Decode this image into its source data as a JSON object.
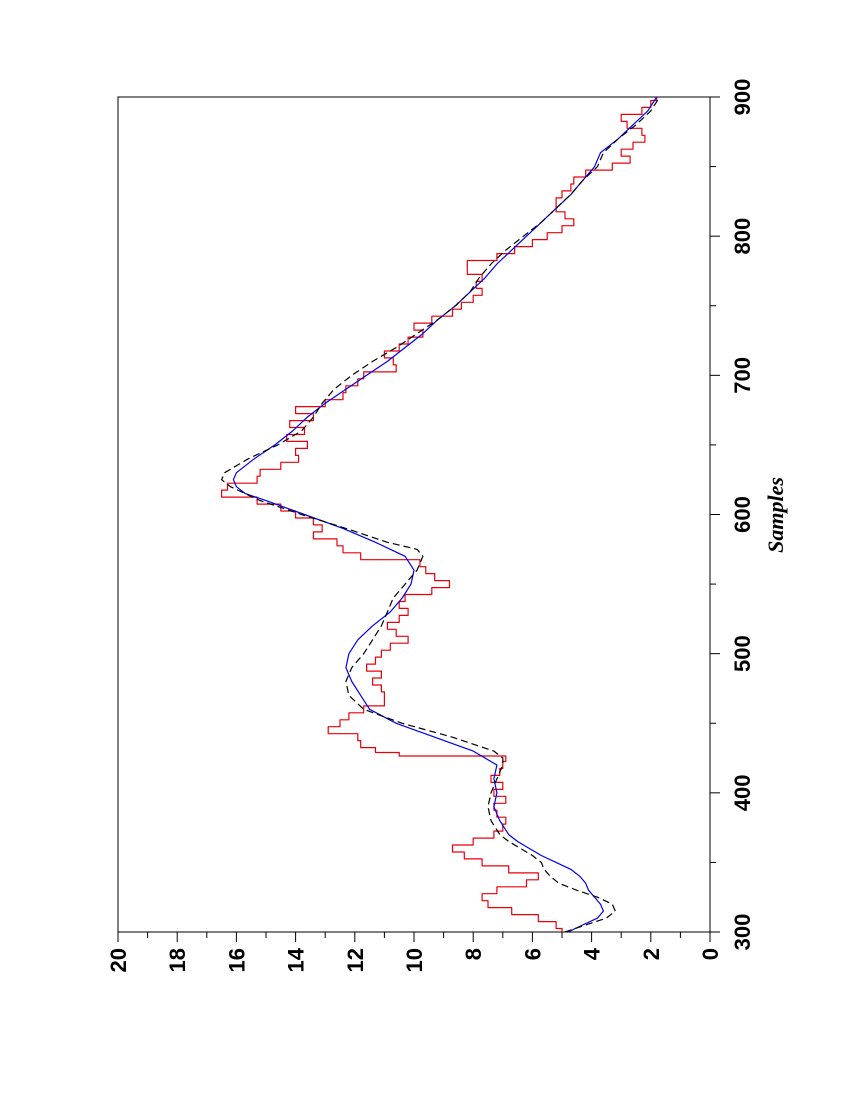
{
  "chart_data": {
    "type": "line",
    "orientation": "rotated-90-clockwise",
    "xlabel": "Samples",
    "ylabel": "",
    "xlim": [
      300,
      900
    ],
    "ylim": [
      0,
      20
    ],
    "x_ticks": [
      300,
      400,
      500,
      600,
      700,
      800,
      900
    ],
    "y_ticks": [
      0,
      2,
      4,
      6,
      8,
      10,
      12,
      14,
      16,
      18,
      20
    ],
    "grid": false,
    "legend": "none",
    "series": [
      {
        "style": "solid-red-stepped",
        "color": "#e8000b",
        "points": [
          [
            300,
            5.0
          ],
          [
            305,
            5.2
          ],
          [
            310,
            5.8
          ],
          [
            315,
            6.7
          ],
          [
            320,
            7.5
          ],
          [
            325,
            7.7
          ],
          [
            330,
            7.2
          ],
          [
            335,
            6.2
          ],
          [
            340,
            5.8
          ],
          [
            345,
            6.8
          ],
          [
            350,
            7.7
          ],
          [
            355,
            8.3
          ],
          [
            360,
            8.7
          ],
          [
            365,
            8.0
          ],
          [
            370,
            7.3
          ],
          [
            375,
            7.0
          ],
          [
            380,
            6.9
          ],
          [
            385,
            7.2
          ],
          [
            390,
            7.3
          ],
          [
            395,
            6.9
          ],
          [
            400,
            7.3
          ],
          [
            405,
            7.0
          ],
          [
            410,
            7.4
          ],
          [
            415,
            7.1
          ],
          [
            420,
            7.0
          ],
          [
            425,
            6.9
          ],
          [
            428,
            10.5
          ],
          [
            430,
            11.3
          ],
          [
            435,
            11.8
          ],
          [
            440,
            11.9
          ],
          [
            445,
            12.9
          ],
          [
            450,
            12.5
          ],
          [
            455,
            12.2
          ],
          [
            460,
            11.7
          ],
          [
            465,
            11.0
          ],
          [
            470,
            11.0
          ],
          [
            475,
            11.1
          ],
          [
            480,
            11.4
          ],
          [
            485,
            11.1
          ],
          [
            490,
            11.6
          ],
          [
            495,
            11.3
          ],
          [
            500,
            11.1
          ],
          [
            505,
            10.8
          ],
          [
            510,
            10.2
          ],
          [
            515,
            10.6
          ],
          [
            520,
            10.9
          ],
          [
            525,
            10.5
          ],
          [
            530,
            10.2
          ],
          [
            535,
            10.5
          ],
          [
            540,
            10.3
          ],
          [
            545,
            9.4
          ],
          [
            550,
            8.8
          ],
          [
            555,
            9.3
          ],
          [
            560,
            9.6
          ],
          [
            565,
            9.8
          ],
          [
            570,
            11.8
          ],
          [
            575,
            12.4
          ],
          [
            580,
            12.6
          ],
          [
            585,
            13.4
          ],
          [
            590,
            13.1
          ],
          [
            595,
            13.4
          ],
          [
            600,
            14.0
          ],
          [
            605,
            14.5
          ],
          [
            610,
            15.3
          ],
          [
            615,
            16.5
          ],
          [
            620,
            16.3
          ],
          [
            625,
            15.3
          ],
          [
            630,
            15.2
          ],
          [
            635,
            14.5
          ],
          [
            640,
            13.9
          ],
          [
            645,
            14.0
          ],
          [
            650,
            13.6
          ],
          [
            655,
            14.3
          ],
          [
            660,
            13.7
          ],
          [
            665,
            14.2
          ],
          [
            670,
            13.4
          ],
          [
            675,
            14.0
          ],
          [
            680,
            13.0
          ],
          [
            685,
            12.4
          ],
          [
            690,
            12.3
          ],
          [
            695,
            11.9
          ],
          [
            700,
            11.7
          ],
          [
            705,
            10.6
          ],
          [
            710,
            10.7
          ],
          [
            715,
            11.0
          ],
          [
            720,
            10.5
          ],
          [
            725,
            10.2
          ],
          [
            730,
            9.7
          ],
          [
            735,
            10.0
          ],
          [
            740,
            9.4
          ],
          [
            745,
            8.7
          ],
          [
            750,
            8.4
          ],
          [
            755,
            8.0
          ],
          [
            760,
            7.7
          ],
          [
            765,
            7.9
          ],
          [
            770,
            7.7
          ],
          [
            775,
            8.2
          ],
          [
            780,
            8.2
          ],
          [
            785,
            7.2
          ],
          [
            790,
            6.6
          ],
          [
            795,
            6.0
          ],
          [
            800,
            5.5
          ],
          [
            805,
            5.0
          ],
          [
            810,
            4.6
          ],
          [
            815,
            4.9
          ],
          [
            820,
            5.2
          ],
          [
            825,
            5.2
          ],
          [
            830,
            5.0
          ],
          [
            835,
            4.7
          ],
          [
            840,
            4.6
          ],
          [
            845,
            4.2
          ],
          [
            850,
            3.3
          ],
          [
            855,
            2.7
          ],
          [
            860,
            3.0
          ],
          [
            865,
            2.6
          ],
          [
            870,
            2.2
          ],
          [
            875,
            2.3
          ],
          [
            880,
            2.8
          ],
          [
            885,
            3.0
          ],
          [
            890,
            2.3
          ],
          [
            895,
            2.0
          ],
          [
            900,
            1.8
          ]
        ]
      },
      {
        "style": "solid-blue",
        "color": "#0000ee",
        "points": [
          [
            300,
            4.8
          ],
          [
            305,
            4.3
          ],
          [
            310,
            3.8
          ],
          [
            315,
            3.6
          ],
          [
            320,
            3.7
          ],
          [
            325,
            3.9
          ],
          [
            330,
            4.1
          ],
          [
            335,
            4.2
          ],
          [
            340,
            4.4
          ],
          [
            345,
            4.7
          ],
          [
            350,
            5.2
          ],
          [
            355,
            5.7
          ],
          [
            360,
            6.1
          ],
          [
            365,
            6.5
          ],
          [
            370,
            6.8
          ],
          [
            380,
            7.1
          ],
          [
            390,
            7.3
          ],
          [
            400,
            7.2
          ],
          [
            410,
            7.3
          ],
          [
            420,
            7.2
          ],
          [
            430,
            8.0
          ],
          [
            440,
            9.3
          ],
          [
            450,
            10.6
          ],
          [
            460,
            11.5
          ],
          [
            470,
            11.8
          ],
          [
            480,
            12.1
          ],
          [
            490,
            12.3
          ],
          [
            500,
            12.2
          ],
          [
            510,
            11.9
          ],
          [
            520,
            11.4
          ],
          [
            530,
            10.8
          ],
          [
            540,
            10.4
          ],
          [
            550,
            10.1
          ],
          [
            560,
            10.0
          ],
          [
            570,
            10.3
          ],
          [
            580,
            11.3
          ],
          [
            590,
            12.4
          ],
          [
            600,
            13.7
          ],
          [
            610,
            15.0
          ],
          [
            615,
            15.7
          ],
          [
            620,
            16.0
          ],
          [
            625,
            16.1
          ],
          [
            630,
            16.0
          ],
          [
            640,
            15.4
          ],
          [
            650,
            14.7
          ],
          [
            660,
            14.1
          ],
          [
            670,
            13.6
          ],
          [
            680,
            13.0
          ],
          [
            690,
            12.3
          ],
          [
            700,
            11.6
          ],
          [
            710,
            10.9
          ],
          [
            720,
            10.3
          ],
          [
            730,
            9.7
          ],
          [
            740,
            9.2
          ],
          [
            750,
            8.6
          ],
          [
            760,
            8.1
          ],
          [
            770,
            7.6
          ],
          [
            780,
            7.2
          ],
          [
            790,
            6.7
          ],
          [
            800,
            6.2
          ],
          [
            810,
            5.7
          ],
          [
            820,
            5.2
          ],
          [
            830,
            4.7
          ],
          [
            840,
            4.3
          ],
          [
            850,
            3.9
          ],
          [
            860,
            3.7
          ],
          [
            870,
            3.1
          ],
          [
            880,
            2.6
          ],
          [
            890,
            2.1
          ],
          [
            900,
            1.8
          ]
        ]
      },
      {
        "style": "dashed-black",
        "color": "#000000",
        "points": [
          [
            300,
            4.9
          ],
          [
            305,
            4.2
          ],
          [
            310,
            3.5
          ],
          [
            315,
            3.2
          ],
          [
            320,
            3.3
          ],
          [
            325,
            3.8
          ],
          [
            330,
            4.5
          ],
          [
            335,
            5.1
          ],
          [
            340,
            5.4
          ],
          [
            345,
            5.6
          ],
          [
            350,
            5.7
          ],
          [
            355,
            6.0
          ],
          [
            360,
            6.4
          ],
          [
            365,
            6.8
          ],
          [
            370,
            7.1
          ],
          [
            380,
            7.4
          ],
          [
            390,
            7.5
          ],
          [
            400,
            7.4
          ],
          [
            410,
            7.2
          ],
          [
            420,
            7.0
          ],
          [
            425,
            7.0
          ],
          [
            430,
            7.3
          ],
          [
            440,
            8.7
          ],
          [
            450,
            10.4
          ],
          [
            460,
            11.7
          ],
          [
            470,
            12.2
          ],
          [
            480,
            12.3
          ],
          [
            490,
            12.1
          ],
          [
            500,
            11.7
          ],
          [
            510,
            11.4
          ],
          [
            520,
            11.1
          ],
          [
            530,
            10.9
          ],
          [
            540,
            10.7
          ],
          [
            550,
            10.3
          ],
          [
            560,
            9.9
          ],
          [
            570,
            9.7
          ],
          [
            575,
            9.9
          ],
          [
            580,
            10.9
          ],
          [
            590,
            12.3
          ],
          [
            600,
            13.8
          ],
          [
            610,
            15.2
          ],
          [
            620,
            16.2
          ],
          [
            625,
            16.5
          ],
          [
            630,
            16.4
          ],
          [
            640,
            15.6
          ],
          [
            650,
            14.6
          ],
          [
            660,
            13.8
          ],
          [
            670,
            13.4
          ],
          [
            680,
            13.1
          ],
          [
            690,
            12.7
          ],
          [
            700,
            12.1
          ],
          [
            710,
            11.4
          ],
          [
            720,
            10.6
          ],
          [
            730,
            9.9
          ],
          [
            740,
            9.2
          ],
          [
            750,
            8.6
          ],
          [
            760,
            8.1
          ],
          [
            770,
            7.8
          ],
          [
            780,
            7.4
          ],
          [
            790,
            6.9
          ],
          [
            800,
            6.3
          ],
          [
            810,
            5.7
          ],
          [
            820,
            5.2
          ],
          [
            830,
            4.7
          ],
          [
            840,
            4.3
          ],
          [
            850,
            3.8
          ],
          [
            860,
            3.6
          ],
          [
            870,
            3.1
          ],
          [
            880,
            2.5
          ],
          [
            890,
            2.0
          ],
          [
            900,
            1.7
          ]
        ]
      }
    ]
  }
}
